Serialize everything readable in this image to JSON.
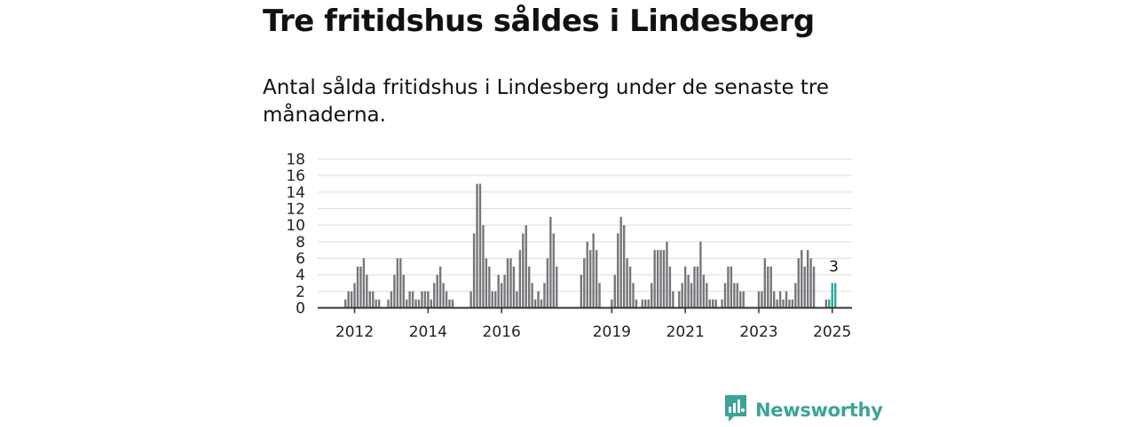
{
  "header": {
    "title": "Tre fritidshus såldes i Lindesberg",
    "subtitle": "Antal sålda fritidshus i Lindesberg under de senaste tre månaderna."
  },
  "brand": {
    "name": "Newsworthy",
    "icon": "newsworthy-logo-icon",
    "color": "#3aa597"
  },
  "colors": {
    "bar": "#77767b",
    "highlight": "#2ba69a",
    "grid": "#dddddd",
    "axis": "#333333"
  },
  "chart_data": {
    "type": "bar",
    "ylim": [
      0,
      18
    ],
    "yticks": [
      0,
      2,
      4,
      6,
      8,
      10,
      12,
      14,
      16,
      18
    ],
    "grid": true,
    "xticks": [
      {
        "label": "2012",
        "year": 2012
      },
      {
        "label": "2014",
        "year": 2014
      },
      {
        "label": "2016",
        "year": 2016
      },
      {
        "label": "2019",
        "year": 2019
      },
      {
        "label": "2021",
        "year": 2021
      },
      {
        "label": "2023",
        "year": 2023
      },
      {
        "label": "2025",
        "year": 2025
      }
    ],
    "start": "2011-10",
    "values": [
      1,
      2,
      2,
      3,
      5,
      5,
      6,
      4,
      2,
      2,
      1,
      1,
      0,
      0,
      1,
      2,
      4,
      6,
      6,
      4,
      1,
      2,
      2,
      1,
      1,
      2,
      2,
      2,
      1,
      3,
      4,
      5,
      3,
      2,
      1,
      1,
      0,
      0,
      0,
      0,
      0,
      2,
      9,
      15,
      15,
      10,
      6,
      5,
      2,
      2,
      4,
      3,
      4,
      6,
      6,
      5,
      2,
      7,
      9,
      10,
      5,
      3,
      1,
      2,
      1,
      3,
      6,
      11,
      9,
      5,
      0,
      0,
      0,
      0,
      0,
      0,
      0,
      4,
      6,
      8,
      7,
      9,
      7,
      3,
      0,
      0,
      0,
      1,
      4,
      9,
      11,
      10,
      6,
      5,
      3,
      1,
      0,
      1,
      1,
      1,
      3,
      7,
      7,
      7,
      7,
      8,
      5,
      2,
      0,
      2,
      3,
      5,
      4,
      3,
      5,
      5,
      8,
      4,
      3,
      1,
      1,
      1,
      0,
      1,
      3,
      5,
      5,
      3,
      3,
      2,
      2,
      0,
      0,
      0,
      0,
      2,
      2,
      6,
      5,
      5,
      2,
      1,
      2,
      1,
      2,
      1,
      1,
      3,
      6,
      7,
      5,
      7,
      6,
      5,
      0,
      0,
      0,
      1,
      1,
      3,
      3
    ],
    "highlight_count": 3,
    "annotation": "3"
  }
}
